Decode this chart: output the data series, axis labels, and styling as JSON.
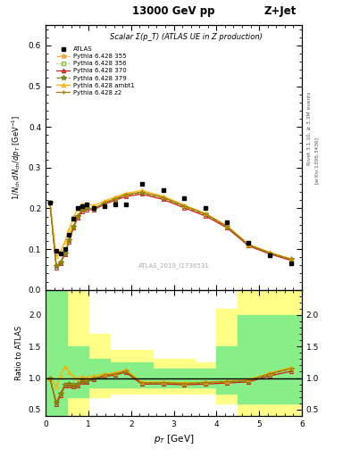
{
  "title_top": "13000 GeV pp",
  "title_right": "Z+Jet",
  "plot_title": "Scalar Σ(p_T) (ATLAS UE in Z production)",
  "watermark": "ATLAS_2019_I1736531",
  "right_label": "Rivet 3.1.10, ≥ 3.3M events",
  "arxiv_label": "[arXiv:1306.3436]",
  "xlabel": "p_T [GeV]",
  "ylabel_main": "1/N_{ch} dN_{ch}/dp_T [GeV^{-1}]",
  "ylabel_ratio": "Ratio to ATLAS",
  "ylim_main": [
    0.0,
    0.65
  ],
  "ylim_ratio": [
    0.4,
    2.4
  ],
  "yticks_main": [
    0.0,
    0.1,
    0.2,
    0.3,
    0.4,
    0.5,
    0.6
  ],
  "yticks_ratio": [
    0.5,
    1.0,
    1.5,
    2.0
  ],
  "xlim": [
    0.0,
    6.0
  ],
  "xticks": [
    0,
    1,
    2,
    3,
    4,
    5,
    6
  ],
  "atlas_x": [
    0.1,
    0.25,
    0.35,
    0.45,
    0.55,
    0.65,
    0.75,
    0.85,
    0.95,
    1.125,
    1.375,
    1.625,
    1.875,
    2.25,
    2.75,
    3.25,
    3.75,
    4.25,
    4.75,
    5.25,
    5.75
  ],
  "atlas_y": [
    0.215,
    0.095,
    0.09,
    0.1,
    0.135,
    0.175,
    0.2,
    0.205,
    0.21,
    0.2,
    0.205,
    0.21,
    0.21,
    0.26,
    0.245,
    0.225,
    0.2,
    0.165,
    0.115,
    0.085,
    0.065
  ],
  "p355_x": [
    0.1,
    0.25,
    0.35,
    0.45,
    0.55,
    0.65,
    0.75,
    0.85,
    0.95,
    1.125,
    1.375,
    1.625,
    1.875,
    2.25,
    2.75,
    3.25,
    3.75,
    4.25,
    4.75,
    5.25,
    5.75
  ],
  "p355_y": [
    0.215,
    0.058,
    0.068,
    0.09,
    0.122,
    0.155,
    0.18,
    0.196,
    0.2,
    0.198,
    0.213,
    0.222,
    0.232,
    0.238,
    0.226,
    0.204,
    0.184,
    0.155,
    0.11,
    0.09,
    0.074
  ],
  "p356_x": [
    0.1,
    0.25,
    0.35,
    0.45,
    0.55,
    0.65,
    0.75,
    0.85,
    0.95,
    1.125,
    1.375,
    1.625,
    1.875,
    2.25,
    2.75,
    3.25,
    3.75,
    4.25,
    4.75,
    5.25,
    5.75
  ],
  "p356_y": [
    0.215,
    0.058,
    0.068,
    0.09,
    0.122,
    0.155,
    0.18,
    0.196,
    0.2,
    0.198,
    0.213,
    0.222,
    0.232,
    0.238,
    0.226,
    0.205,
    0.185,
    0.155,
    0.11,
    0.09,
    0.074
  ],
  "p370_x": [
    0.1,
    0.25,
    0.35,
    0.45,
    0.55,
    0.65,
    0.75,
    0.85,
    0.95,
    1.125,
    1.375,
    1.625,
    1.875,
    2.25,
    2.75,
    3.25,
    3.75,
    4.25,
    4.75,
    5.25,
    5.75
  ],
  "p370_y": [
    0.215,
    0.055,
    0.065,
    0.088,
    0.118,
    0.152,
    0.177,
    0.192,
    0.197,
    0.196,
    0.21,
    0.22,
    0.229,
    0.235,
    0.222,
    0.201,
    0.181,
    0.152,
    0.108,
    0.088,
    0.072
  ],
  "p379_x": [
    0.1,
    0.25,
    0.35,
    0.45,
    0.55,
    0.65,
    0.75,
    0.85,
    0.95,
    1.125,
    1.375,
    1.625,
    1.875,
    2.25,
    2.75,
    3.25,
    3.75,
    4.25,
    4.75,
    5.25,
    5.75
  ],
  "p379_y": [
    0.215,
    0.058,
    0.068,
    0.09,
    0.122,
    0.156,
    0.181,
    0.197,
    0.201,
    0.199,
    0.214,
    0.223,
    0.233,
    0.239,
    0.226,
    0.205,
    0.185,
    0.155,
    0.11,
    0.09,
    0.075
  ],
  "pambt1_x": [
    0.1,
    0.25,
    0.35,
    0.45,
    0.55,
    0.65,
    0.75,
    0.85,
    0.95,
    1.125,
    1.375,
    1.625,
    1.875,
    2.25,
    2.75,
    3.25,
    3.75,
    4.25,
    4.75,
    5.25,
    5.75
  ],
  "pambt1_y": [
    0.215,
    0.082,
    0.095,
    0.118,
    0.148,
    0.178,
    0.199,
    0.21,
    0.212,
    0.207,
    0.218,
    0.228,
    0.237,
    0.244,
    0.23,
    0.208,
    0.187,
    0.157,
    0.112,
    0.092,
    0.076
  ],
  "pz2_x": [
    0.1,
    0.25,
    0.35,
    0.45,
    0.55,
    0.65,
    0.75,
    0.85,
    0.95,
    1.125,
    1.375,
    1.625,
    1.875,
    2.25,
    2.75,
    3.25,
    3.75,
    4.25,
    4.75,
    5.25,
    5.75
  ],
  "pz2_y": [
    0.215,
    0.058,
    0.068,
    0.09,
    0.122,
    0.156,
    0.181,
    0.197,
    0.201,
    0.199,
    0.214,
    0.224,
    0.234,
    0.24,
    0.227,
    0.206,
    0.186,
    0.156,
    0.111,
    0.091,
    0.075
  ],
  "band_edges": [
    0.0,
    0.2,
    0.5,
    1.0,
    1.5,
    2.5,
    3.5,
    4.0,
    4.5,
    5.0,
    6.0
  ],
  "yellow_lo": [
    0.4,
    0.4,
    0.4,
    0.7,
    0.75,
    0.75,
    0.75,
    0.6,
    0.4,
    0.4,
    0.4
  ],
  "yellow_hi": [
    2.4,
    2.4,
    2.4,
    1.7,
    1.45,
    1.3,
    1.25,
    2.1,
    2.4,
    2.4,
    2.4
  ],
  "green_lo": [
    0.4,
    0.4,
    0.7,
    0.85,
    0.85,
    0.85,
    0.85,
    0.75,
    0.6,
    0.6,
    0.6
  ],
  "green_hi": [
    2.4,
    2.4,
    1.5,
    1.3,
    1.25,
    1.15,
    1.15,
    1.5,
    2.0,
    2.0,
    2.0
  ],
  "color_355": "#ffa040",
  "color_356": "#90c030",
  "color_370": "#cc2020",
  "color_379": "#708020",
  "color_ambt1": "#ffb000",
  "color_z2": "#a08000",
  "color_atlas": "black",
  "color_yellow": "#ffff88",
  "color_green": "#88ee88"
}
